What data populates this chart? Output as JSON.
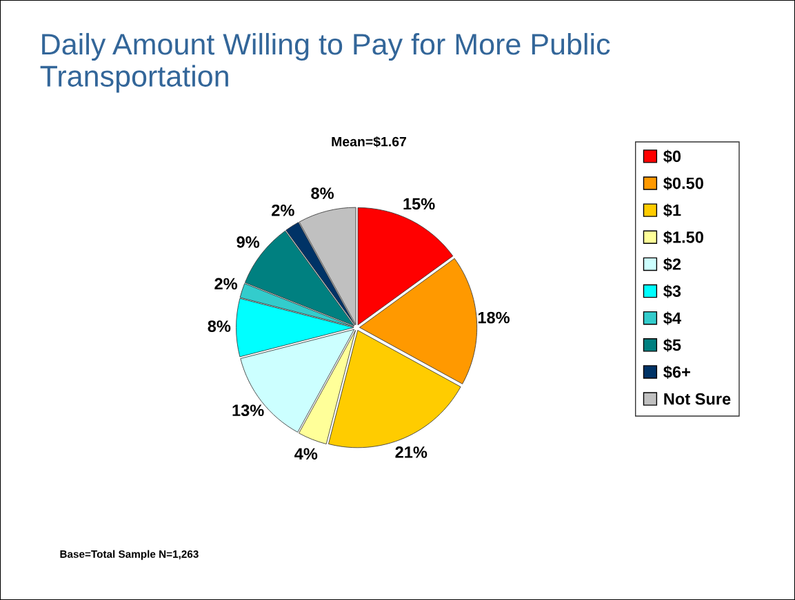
{
  "chart_data": {
    "type": "pie",
    "title": "Daily Amount Willing to Pay for More Public Transportation",
    "subtitle": "Mean=$1.67",
    "categories": [
      "$0",
      "$0.50",
      "$1",
      "$1.50",
      "$2",
      "$3",
      "$4",
      "$5",
      "$6+",
      "Not Sure"
    ],
    "values": [
      15,
      18,
      21,
      4,
      13,
      8,
      2,
      9,
      2,
      8
    ],
    "colors": [
      "#ff0000",
      "#ff9900",
      "#ffcc00",
      "#ffff99",
      "#ccffff",
      "#00ffff",
      "#33cccc",
      "#008080",
      "#003366",
      "#c0c0c0"
    ],
    "value_labels": [
      "15%",
      "18%",
      "21%",
      "4%",
      "13%",
      "8%",
      "2%",
      "9%",
      "2%",
      "8%"
    ],
    "legend": "right",
    "annotations": [
      "Base=Total Sample N=1,263"
    ]
  }
}
